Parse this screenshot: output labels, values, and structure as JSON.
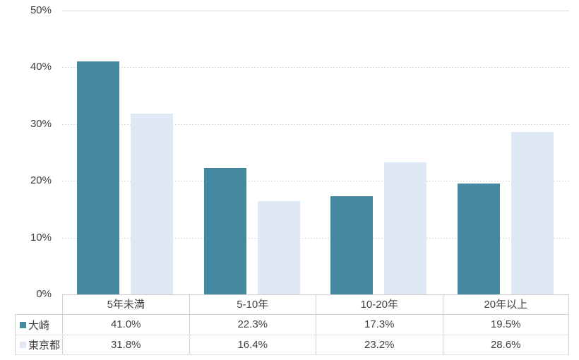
{
  "chart_data": {
    "type": "bar",
    "title": "",
    "categories": [
      "5年未満",
      "5-10年",
      "10-20年",
      "20年以上"
    ],
    "series": [
      {
        "name": "大崎",
        "color": "#4589A0",
        "values": [
          41.0,
          22.3,
          17.3,
          19.5
        ]
      },
      {
        "name": "東京都",
        "color": "#DEE9F5",
        "values": [
          31.8,
          16.4,
          23.2,
          28.6
        ]
      }
    ],
    "ylim": [
      0,
      50
    ],
    "ytick_step": 10,
    "ytick_labels": [
      "0%",
      "10%",
      "20%",
      "30%",
      "40%",
      "50%"
    ],
    "grid": "horizontal-dashed",
    "legend_position": "table-left-keys"
  },
  "table": {
    "rows": [
      {
        "name": "大崎",
        "values": [
          "41.0%",
          "22.3%",
          "17.3%",
          "19.5%"
        ]
      },
      {
        "name": "東京都",
        "values": [
          "31.8%",
          "16.4%",
          "23.2%",
          "28.6%"
        ]
      }
    ]
  },
  "colors": {
    "series_osaki": "#4589A0",
    "series_tokyo": "#DEE9F5",
    "gridline": "#D9D9D9",
    "table_border": "#D2D2D2",
    "text": "#3F3F3F",
    "background": "#FFFFFF"
  }
}
